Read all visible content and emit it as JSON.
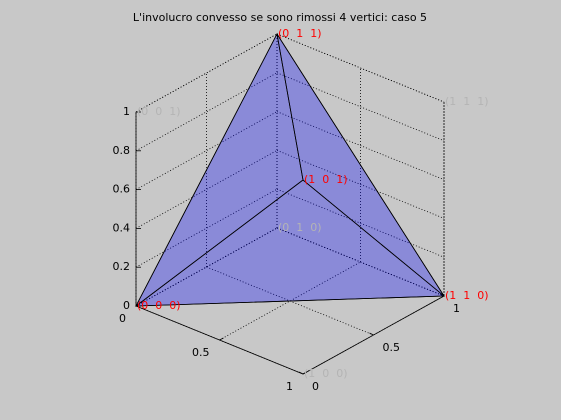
{
  "chart_data": {
    "type": "hull3d",
    "title": "L'involucro convesso se sono rimossi 4 vertici: caso 5",
    "vertices": [
      {
        "label": "(0  0  0)",
        "x": 0,
        "y": 0,
        "z": 0,
        "color": "#ff0000"
      },
      {
        "label": "(1  1  0)",
        "x": 1,
        "y": 1,
        "z": 0,
        "color": "#ff0000"
      },
      {
        "label": "(0  1  1)",
        "x": 0,
        "y": 1,
        "z": 1,
        "color": "#ff0000"
      },
      {
        "label": "(1  0  1)",
        "x": 1,
        "y": 0,
        "z": 1,
        "color": "#ff0000"
      },
      {
        "label": "(0  0  1)",
        "x": 0,
        "y": 0,
        "z": 1,
        "color": "#b4b4b4"
      },
      {
        "label": "(1  1  1)",
        "x": 1,
        "y": 1,
        "z": 1,
        "color": "#b4b4b4"
      },
      {
        "label": "(0  1  0)",
        "x": 0,
        "y": 1,
        "z": 0,
        "color": "#b4b4b4"
      },
      {
        "label": "(1  0  0)",
        "x": 1,
        "y": 0,
        "z": 0,
        "color": "#b4b4b4"
      }
    ],
    "faces": [
      [
        0,
        1,
        2
      ],
      [
        0,
        1,
        3
      ],
      [
        0,
        2,
        3
      ],
      [
        1,
        2,
        3
      ]
    ],
    "face_color": "#0000ff",
    "xlim": [
      0,
      1
    ],
    "ylim": [
      0,
      1
    ],
    "zlim": [
      0,
      1
    ],
    "xticks": [
      0,
      0.5,
      1
    ],
    "yticks": [
      0,
      0.5,
      1
    ],
    "zticks": [
      0,
      0.2,
      0.4,
      0.6,
      0.8,
      1
    ],
    "grid": true
  }
}
